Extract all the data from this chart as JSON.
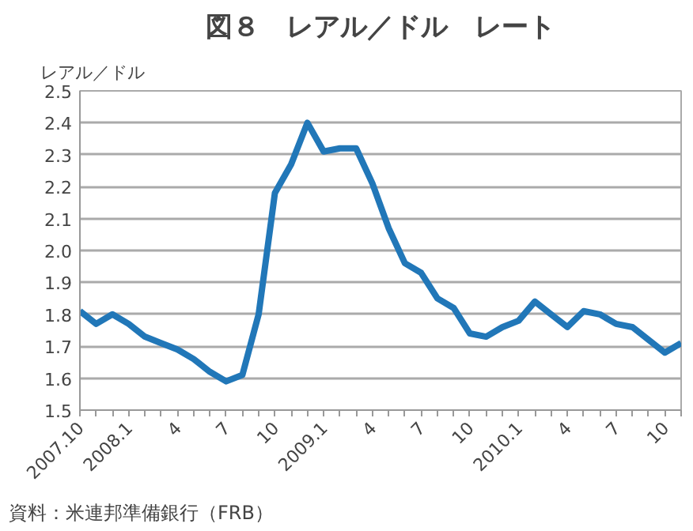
{
  "chart_data": {
    "type": "line",
    "title": "図８　レアル／ドル　レート",
    "ylabel": "レアル／ドル",
    "annotations": [
      "資料：米連邦準備銀行（FRB）"
    ],
    "categories": [
      "2007.10",
      null,
      null,
      "2008.1",
      null,
      null,
      "4",
      null,
      null,
      "7",
      null,
      null,
      "10",
      null,
      null,
      "2009.1",
      null,
      null,
      "4",
      null,
      null,
      "7",
      null,
      null,
      "10",
      null,
      null,
      "2010.1",
      null,
      null,
      "4",
      null,
      null,
      "7",
      null,
      null,
      "10",
      null
    ],
    "series": [
      {
        "color": "#2177b8",
        "values": [
          1.81,
          1.77,
          1.8,
          1.77,
          1.73,
          1.71,
          1.69,
          1.66,
          1.62,
          1.59,
          1.61,
          1.8,
          2.18,
          2.27,
          2.4,
          2.31,
          2.32,
          2.32,
          2.21,
          2.07,
          1.96,
          1.93,
          1.85,
          1.82,
          1.74,
          1.73,
          1.76,
          1.78,
          1.84,
          1.8,
          1.76,
          1.81,
          1.8,
          1.77,
          1.76,
          1.72,
          1.68,
          1.71
        ]
      }
    ],
    "ylim": [
      1.5,
      2.5
    ],
    "yticks": [
      {
        "value": 1.5,
        "label": "1.5"
      },
      {
        "value": 1.6,
        "label": "1.6"
      },
      {
        "value": 1.7,
        "label": "1.7"
      },
      {
        "value": 1.8,
        "label": "1.8"
      },
      {
        "value": 1.9,
        "label": "1.9"
      },
      {
        "value": 2.0,
        "label": "2.0"
      },
      {
        "value": 2.1,
        "label": "2.1"
      },
      {
        "value": 2.2,
        "label": "2.2"
      },
      {
        "value": 2.3,
        "label": "2.3"
      },
      {
        "value": 2.4,
        "label": "2.4"
      },
      {
        "value": 2.5,
        "label": "2.5"
      }
    ],
    "grid": "y",
    "marker": "none",
    "line_style": "solid"
  }
}
